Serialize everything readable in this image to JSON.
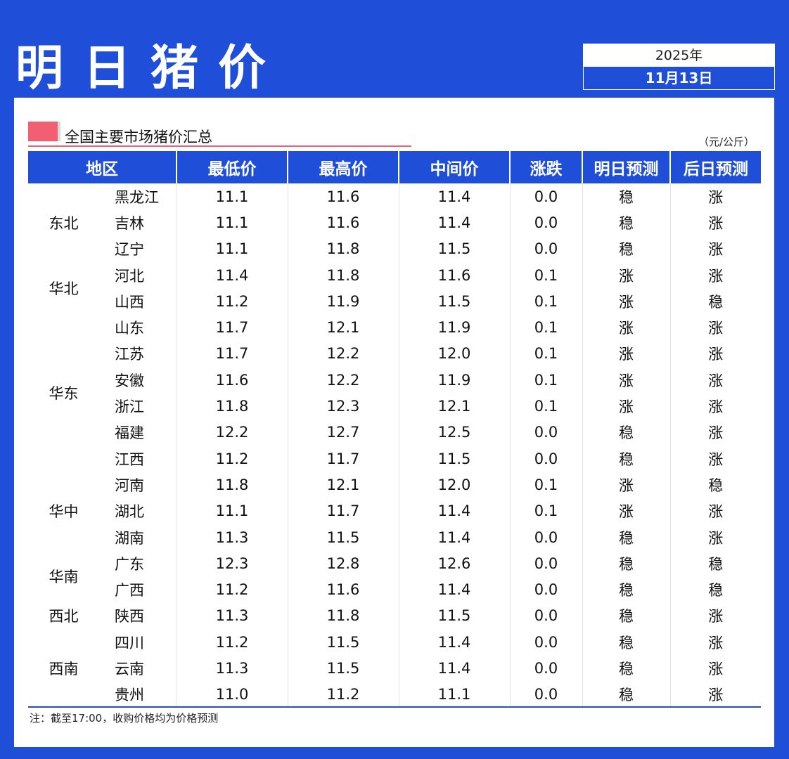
{
  "header": {
    "title": "明日猪价",
    "year": "2025年",
    "date": "11月13日"
  },
  "section": {
    "title": "全国主要市场猪价汇总",
    "unit": "（元/公斤）"
  },
  "colors": {
    "brand_blue": "#1f4fd8",
    "up_red": "#e8385a",
    "marker_pink": "#f25f72"
  },
  "table": {
    "columns": [
      "地区",
      "最低价",
      "最高价",
      "中间价",
      "涨跌",
      "明日预测",
      "后日预测"
    ],
    "regions": [
      {
        "name": "东北",
        "rows": [
          {
            "province": "黑龙江",
            "low": "11.1",
            "high": "11.6",
            "mid": "11.4",
            "change": "0.0",
            "tomorrow": "稳",
            "after": "涨"
          },
          {
            "province": "吉林",
            "low": "11.1",
            "high": "11.6",
            "mid": "11.4",
            "change": "0.0",
            "tomorrow": "稳",
            "after": "涨"
          },
          {
            "province": "辽宁",
            "low": "11.1",
            "high": "11.8",
            "mid": "11.5",
            "change": "0.0",
            "tomorrow": "稳",
            "after": "涨"
          }
        ]
      },
      {
        "name": "华北",
        "rows": [
          {
            "province": "河北",
            "low": "11.4",
            "high": "11.8",
            "mid": "11.6",
            "change": "0.1",
            "tomorrow": "涨",
            "after": "涨"
          },
          {
            "province": "山西",
            "low": "11.2",
            "high": "11.9",
            "mid": "11.5",
            "change": "0.1",
            "tomorrow": "涨",
            "after": "稳"
          }
        ]
      },
      {
        "name": "华东",
        "rows": [
          {
            "province": "山东",
            "low": "11.7",
            "high": "12.1",
            "mid": "11.9",
            "change": "0.1",
            "tomorrow": "涨",
            "after": "涨"
          },
          {
            "province": "江苏",
            "low": "11.7",
            "high": "12.2",
            "mid": "12.0",
            "change": "0.1",
            "tomorrow": "涨",
            "after": "涨"
          },
          {
            "province": "安徽",
            "low": "11.6",
            "high": "12.2",
            "mid": "11.9",
            "change": "0.1",
            "tomorrow": "涨",
            "after": "涨"
          },
          {
            "province": "浙江",
            "low": "11.8",
            "high": "12.3",
            "mid": "12.1",
            "change": "0.1",
            "tomorrow": "涨",
            "after": "涨"
          },
          {
            "province": "福建",
            "low": "12.2",
            "high": "12.7",
            "mid": "12.5",
            "change": "0.0",
            "tomorrow": "稳",
            "after": "涨"
          },
          {
            "province": "江西",
            "low": "11.2",
            "high": "11.7",
            "mid": "11.5",
            "change": "0.0",
            "tomorrow": "稳",
            "after": "涨"
          }
        ]
      },
      {
        "name": "华中",
        "rows": [
          {
            "province": "河南",
            "low": "11.8",
            "high": "12.1",
            "mid": "12.0",
            "change": "0.1",
            "tomorrow": "涨",
            "after": "稳"
          },
          {
            "province": "湖北",
            "low": "11.1",
            "high": "11.7",
            "mid": "11.4",
            "change": "0.1",
            "tomorrow": "涨",
            "after": "涨"
          },
          {
            "province": "湖南",
            "low": "11.3",
            "high": "11.5",
            "mid": "11.4",
            "change": "0.0",
            "tomorrow": "稳",
            "after": "涨"
          }
        ]
      },
      {
        "name": "华南",
        "rows": [
          {
            "province": "广东",
            "low": "12.3",
            "high": "12.8",
            "mid": "12.6",
            "change": "0.0",
            "tomorrow": "稳",
            "after": "稳"
          },
          {
            "province": "广西",
            "low": "11.2",
            "high": "11.6",
            "mid": "11.4",
            "change": "0.0",
            "tomorrow": "稳",
            "after": "稳"
          }
        ]
      },
      {
        "name": "西北",
        "rows": [
          {
            "province": "陕西",
            "low": "11.3",
            "high": "11.8",
            "mid": "11.5",
            "change": "0.0",
            "tomorrow": "稳",
            "after": "涨"
          }
        ]
      },
      {
        "name": "西南",
        "rows": [
          {
            "province": "四川",
            "low": "11.2",
            "high": "11.5",
            "mid": "11.4",
            "change": "0.0",
            "tomorrow": "稳",
            "after": "涨"
          },
          {
            "province": "云南",
            "low": "11.3",
            "high": "11.5",
            "mid": "11.4",
            "change": "0.0",
            "tomorrow": "稳",
            "after": "涨"
          },
          {
            "province": "贵州",
            "low": "11.0",
            "high": "11.2",
            "mid": "11.1",
            "change": "0.0",
            "tomorrow": "稳",
            "after": "涨"
          }
        ]
      }
    ]
  },
  "footer": {
    "note": "注：截至17:00，收购价格均为价格预测"
  }
}
